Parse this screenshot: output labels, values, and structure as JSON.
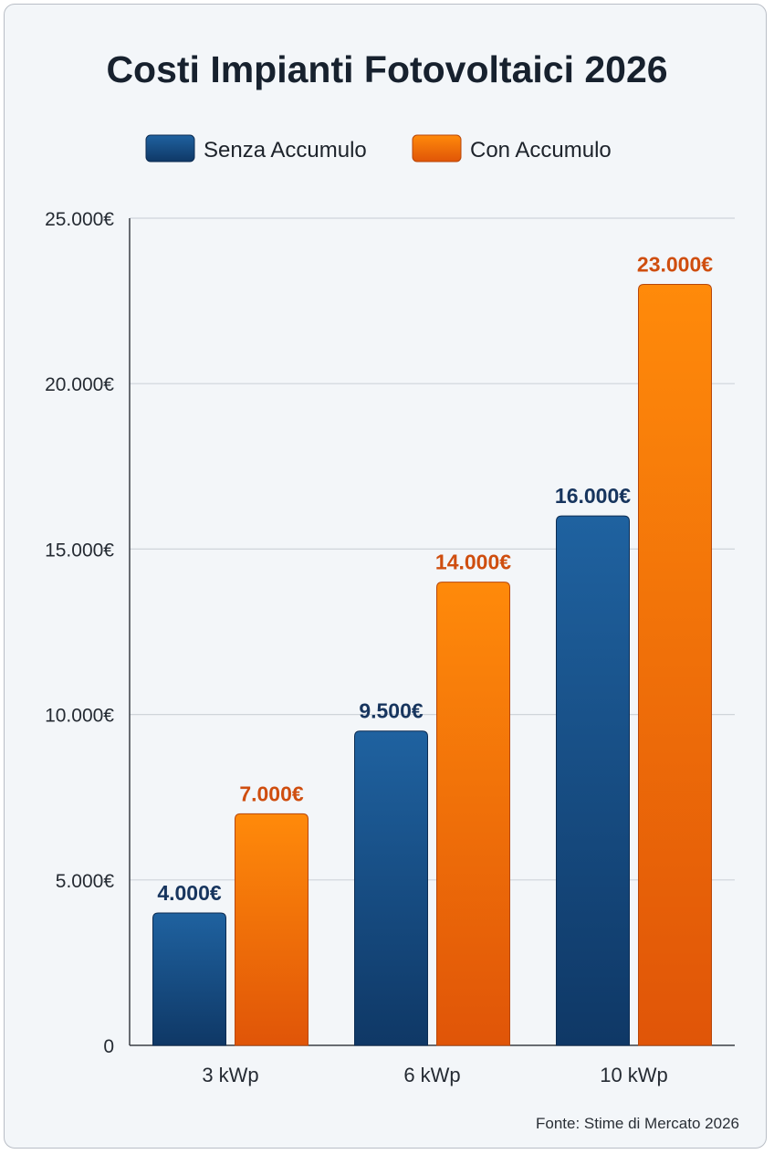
{
  "chart_data": {
    "type": "bar",
    "title": "Costi Impianti Fotovoltaici 2026",
    "categories": [
      "3 kWp",
      "6 kWp",
      "10 kWp"
    ],
    "series": [
      {
        "name": "Senza Accumulo",
        "values": [
          4000,
          9500,
          16000
        ],
        "labels": [
          "4.000€",
          "9.500€",
          "16.000€"
        ],
        "color": "#1d5a94",
        "label_color": "#17355e"
      },
      {
        "name": "Con Accumulo",
        "values": [
          7000,
          14000,
          23000
        ],
        "labels": [
          "7.000€",
          "14.000€",
          "23.000€"
        ],
        "color": "#f47a0c",
        "label_color": "#cf4e0f"
      }
    ],
    "yticks": [
      0,
      5000,
      10000,
      15000,
      20000,
      25000
    ],
    "ytick_labels": [
      "0",
      "5.000€",
      "10.000€",
      "15.000€",
      "20.000€",
      "25.000€"
    ],
    "ylim": [
      0,
      25000
    ],
    "xlabel": "",
    "ylabel": "",
    "grid": true,
    "legend_position": "top-center",
    "source": "Fonte: Stime di Mercato 2026"
  }
}
